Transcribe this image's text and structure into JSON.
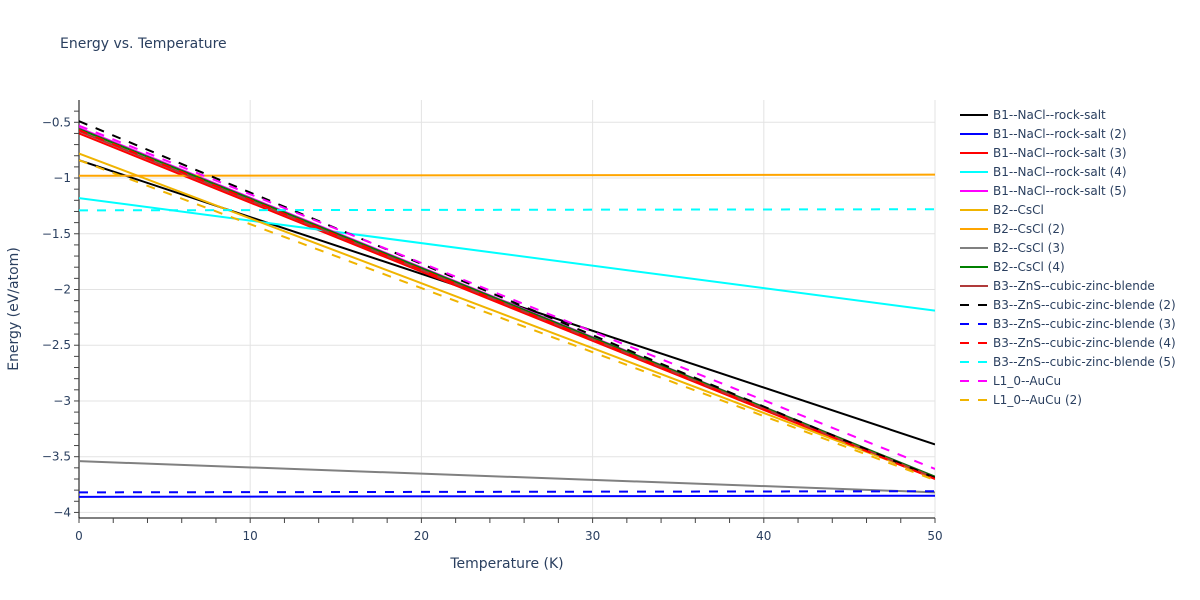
{
  "chart_data": {
    "type": "line",
    "title": "Energy vs. Temperature",
    "xlabel": "Temperature (K)",
    "ylabel": "Energy (eV/atom)",
    "xlim": [
      0,
      50
    ],
    "ylim": [
      -4.05,
      -0.3
    ],
    "xticks": [
      0,
      10,
      20,
      30,
      40,
      50
    ],
    "xtick_labels": [
      "0",
      "10",
      "20",
      "30",
      "40",
      "50"
    ],
    "yticks": [
      -0.5,
      -1,
      -1.5,
      -2,
      -2.5,
      -3,
      -3.5,
      -4
    ],
    "ytick_labels": [
      "−0.5",
      "−1",
      "−1.5",
      "−2",
      "−2.5",
      "−3",
      "−3.5",
      "−4"
    ],
    "grid": true,
    "legend_position": "right",
    "x": [
      0,
      50
    ],
    "series": [
      {
        "name": "B1--NaCl--rock-salt",
        "color": "#000000",
        "dash": "solid",
        "values": [
          -0.84,
          -3.39
        ]
      },
      {
        "name": "B1--NaCl--rock-salt (2)",
        "color": "#0000ff",
        "dash": "solid",
        "values": [
          -3.86,
          -3.85
        ]
      },
      {
        "name": "B1--NaCl--rock-salt (3)",
        "color": "#ff0000",
        "dash": "solid",
        "values": [
          -0.6,
          -3.7
        ]
      },
      {
        "name": "B1--NaCl--rock-salt (4)",
        "color": "#00ffff",
        "dash": "solid",
        "values": [
          -1.18,
          -2.19
        ]
      },
      {
        "name": "B1--NaCl--rock-salt (5)",
        "color": "#ff00ff",
        "dash": "solid",
        "values": [
          -0.55,
          -3.68
        ]
      },
      {
        "name": "B2--CsCl",
        "color": "#f0b400",
        "dash": "solid",
        "values": [
          -0.78,
          -3.69
        ]
      },
      {
        "name": "B2--CsCl (2)",
        "color": "#ffa500",
        "dash": "solid",
        "values": [
          -0.98,
          -0.97
        ]
      },
      {
        "name": "B2--CsCl (3)",
        "color": "#808080",
        "dash": "solid",
        "values": [
          -3.54,
          -3.82
        ]
      },
      {
        "name": "B2--CsCl (4)",
        "color": "#008000",
        "dash": "solid",
        "values": [
          -0.56,
          -3.68
        ]
      },
      {
        "name": "B3--ZnS--cubic-zinc-blende",
        "color": "#b03a3a",
        "dash": "solid",
        "values": [
          -0.58,
          -3.69
        ]
      },
      {
        "name": "B3--ZnS--cubic-zinc-blende (2)",
        "color": "#000000",
        "dash": "dash",
        "values": [
          -0.49,
          -3.69
        ]
      },
      {
        "name": "B3--ZnS--cubic-zinc-blende (3)",
        "color": "#0000ff",
        "dash": "dash",
        "values": [
          -3.82,
          -3.81
        ]
      },
      {
        "name": "B3--ZnS--cubic-zinc-blende (4)",
        "color": "#ff0000",
        "dash": "dash",
        "values": [
          -0.57,
          -3.7
        ]
      },
      {
        "name": "B3--ZnS--cubic-zinc-blende (5)",
        "color": "#00ffff",
        "dash": "dash",
        "values": [
          -1.29,
          -1.28
        ]
      },
      {
        "name": "L1_0--AuCu",
        "color": "#ff00ff",
        "dash": "dash",
        "values": [
          -0.53,
          -3.61
        ]
      },
      {
        "name": "L1_0--AuCu (2)",
        "color": "#f0b400",
        "dash": "dash",
        "values": [
          -0.84,
          -3.71
        ]
      }
    ]
  }
}
